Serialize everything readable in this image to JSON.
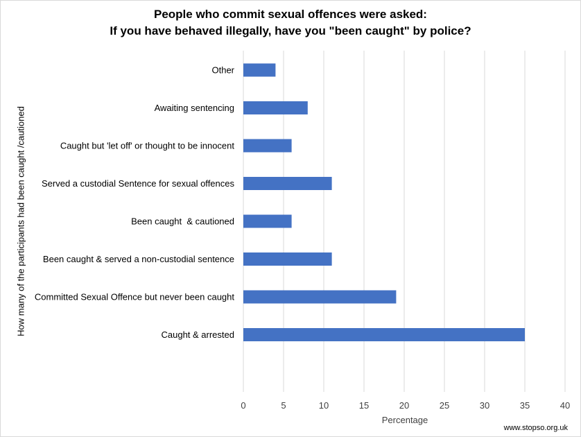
{
  "chart_data": {
    "type": "bar",
    "orientation": "horizontal",
    "title_lines": [
      "People who commit sexual offences were asked:",
      "If you have behaved illegally, have you \"been caught\" by police?"
    ],
    "xlabel": "Percentage",
    "ylabel": "How many of the participants had been caught /cautioned",
    "categories": [
      "Other",
      "Awaiting sentencing",
      "Caught but 'let off' or thought to be innocent",
      "Served a custodial Sentence for sexual offences",
      "Been caught  & cautioned",
      "Been caught & served a non-custodial sentence",
      "Committed Sexual Offence but never been caught",
      "Caught & arrested"
    ],
    "values": [
      4,
      8,
      6,
      11,
      6,
      11,
      19,
      35
    ],
    "xlim": [
      0,
      40
    ],
    "xticks": [
      "0",
      "5",
      "10",
      "15",
      "20",
      "25",
      "30",
      "35",
      "40"
    ],
    "grid": "vertical",
    "legend": "none",
    "bar_color": "#4472c4"
  },
  "footer": {
    "source": "www.stopso.org.uk"
  }
}
